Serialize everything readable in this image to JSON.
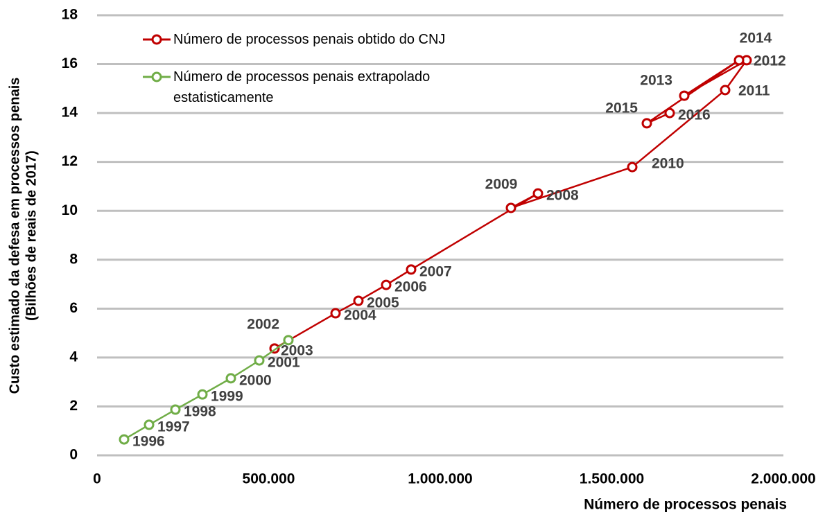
{
  "chart_data": {
    "type": "line",
    "xlabel": "Número de processos penais",
    "ylabel": [
      "Custo estimado da defesa em processos penais",
      "(Bilhões de reais de 2017)"
    ],
    "xlim": [
      0,
      2000000
    ],
    "xticks": [
      0,
      {
        "value": 500000,
        "label": "500.000"
      },
      {
        "value": 1000000,
        "label": "1.000.000"
      },
      {
        "value": 1500000,
        "label": "1.500.000"
      },
      {
        "value": 2000000,
        "label": "2.000.000"
      }
    ],
    "ylim": [
      0,
      18
    ],
    "yticks": [
      0,
      2,
      4,
      6,
      8,
      10,
      12,
      14,
      16,
      18
    ],
    "grid": true,
    "series": [
      {
        "name": "Número de processos penais obtido do CNJ",
        "color": "#c00000",
        "labels": [
          "2003",
          "2004",
          "2005",
          "2006",
          "2007",
          "2008",
          "2009",
          "2010",
          "2011",
          "2012",
          "2013",
          "2014",
          "2015",
          "2016"
        ],
        "x": [
          517172,
          694949,
          761616,
          842424,
          915152,
          1284848,
          1206061,
          1559596,
          1830303,
          1892929,
          1711111,
          1870707,
          1602020,
          1668687
        ],
        "values": [
          4.37,
          5.81,
          6.32,
          6.97,
          7.6,
          10.71,
          10.12,
          11.79,
          14.94,
          16.16,
          14.71,
          16.16,
          13.58,
          14.0
        ]
      },
      {
        "name": "Número de processos penais extrapolado estatisticamente",
        "color": "#70ad47",
        "labels": [
          "1996",
          "1997",
          "1998",
          "1999",
          "2000",
          "2001",
          "2002"
        ],
        "x": [
          78788,
          151515,
          228283,
          307071,
          389899,
          472727,
          557576
        ],
        "values": [
          0.65,
          1.25,
          1.87,
          2.49,
          3.15,
          3.88,
          4.71
        ]
      }
    ]
  }
}
